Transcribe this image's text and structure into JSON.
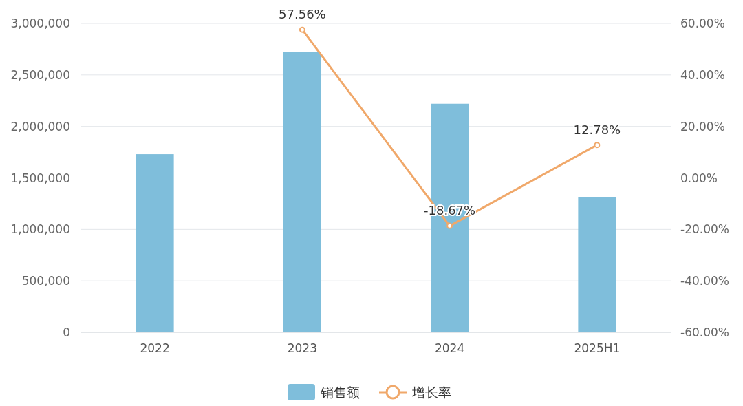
{
  "chart_data": {
    "type": "bar",
    "categories": [
      "2022",
      "2023",
      "2024",
      "2025H1"
    ],
    "series": [
      {
        "name": "销售额",
        "color": "#7fbedb",
        "values": [
          1730000,
          2725000,
          2220000,
          1310000
        ]
      },
      {
        "name": "增长率",
        "type": "line",
        "axis": "y2",
        "color": "#f0a86a",
        "values": [
          null,
          57.56,
          -18.67,
          12.78
        ],
        "value_labels": [
          null,
          "57.56%",
          "-18.67%",
          "12.78%"
        ],
        "marker": "circle"
      }
    ],
    "ylim": [
      0,
      3000000
    ],
    "yticks": [
      0,
      {
        "value": 500000,
        "label": "500,000"
      },
      {
        "value": 1000000,
        "label": "1,000,000"
      },
      {
        "value": 1500000,
        "label": "1,500,000"
      },
      {
        "value": 2000000,
        "label": "2,000,000"
      },
      {
        "value": 2500000,
        "label": "2,500,000"
      },
      {
        "value": 3000000,
        "label": "3,000,000"
      }
    ],
    "y2lim": [
      -60,
      60
    ],
    "y2ticks": [
      {
        "value": -60,
        "label": "-60.00%"
      },
      {
        "value": -40,
        "label": "-40.00%"
      },
      {
        "value": -20,
        "label": "-20.00%"
      },
      {
        "value": 0,
        "label": "0.00%"
      },
      {
        "value": 20,
        "label": "20.00%"
      },
      {
        "value": 40,
        "label": "40.00%"
      },
      {
        "value": 60,
        "label": "60.00%"
      }
    ],
    "grid": "y",
    "legend": "bottom"
  }
}
